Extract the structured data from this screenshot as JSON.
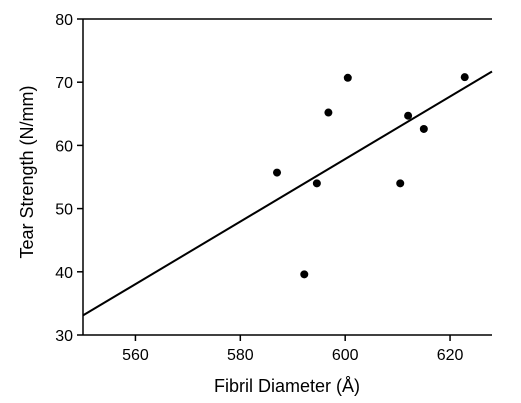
{
  "chart_data": {
    "type": "scatter",
    "title": "",
    "xlabel": "Fibril Diameter (Å)",
    "ylabel": "Tear Strength (N/mm)",
    "xlim": [
      550,
      628
    ],
    "ylim": [
      30,
      80
    ],
    "xticks": [
      560,
      580,
      600,
      620
    ],
    "yticks": [
      30,
      40,
      50,
      60,
      70,
      80
    ],
    "grid": false,
    "points": [
      {
        "x": 587.0,
        "y": 55.7
      },
      {
        "x": 592.2,
        "y": 39.6
      },
      {
        "x": 594.6,
        "y": 54.0
      },
      {
        "x": 596.8,
        "y": 65.2
      },
      {
        "x": 600.5,
        "y": 70.7
      },
      {
        "x": 610.5,
        "y": 54.0
      },
      {
        "x": 612.0,
        "y": 64.7
      },
      {
        "x": 615.0,
        "y": 62.6
      },
      {
        "x": 622.8,
        "y": 70.8
      }
    ],
    "fit_line": {
      "x": [
        550,
        628
      ],
      "y": [
        33.1,
        71.7
      ]
    }
  }
}
